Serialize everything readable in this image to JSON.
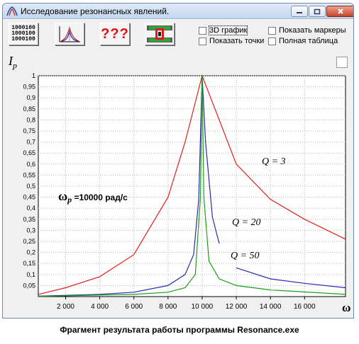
{
  "window": {
    "title": "Исследование резонансных явлений."
  },
  "toolbar": {
    "buttons": [
      {
        "name": "binary-data-icon",
        "lines": [
          "1000100",
          "1000100",
          "1000100"
        ]
      },
      {
        "name": "resonance-curves-icon"
      },
      {
        "name": "help-icon",
        "text": "???"
      },
      {
        "name": "circuit-icon"
      }
    ],
    "checkboxes": {
      "graph_3d": {
        "label": "3D график",
        "checked": false
      },
      "show_points": {
        "label": "Показать точки",
        "checked": false
      },
      "show_markers": {
        "label": "Показать маркеры",
        "checked": false
      },
      "full_table": {
        "label": "Полная таблица",
        "checked": false
      }
    }
  },
  "plot": {
    "y_symbol": "I",
    "y_symbol_sub": "p",
    "x_symbol": "ω",
    "resonance_label_symbol": "ω",
    "resonance_label_sub": "p",
    "resonance_label_rest": " =10000 рад/с",
    "q_labels": [
      {
        "text": "Q = 3"
      },
      {
        "text": "Q = 20"
      },
      {
        "text": "Q = 50"
      }
    ]
  },
  "chart_data": {
    "type": "line",
    "x_ticks": [
      "2 000",
      "4 000",
      "6 000",
      "8 000",
      "10 000",
      "12 000",
      "14 000",
      "16 000"
    ],
    "y_ticks": [
      "0,05",
      "0,1",
      "0,15",
      "0,2",
      "0,25",
      "0,3",
      "0,35",
      "0,4",
      "0,45",
      "0,5",
      "0,55",
      "0,6",
      "0,65",
      "0,7",
      "0,75",
      "0,8",
      "0,85",
      "0,9",
      "0,95",
      "1"
    ],
    "xlim": [
      400,
      18400
    ],
    "ylim": [
      0,
      1
    ],
    "grid": true,
    "series": [
      {
        "name": "Q = 3",
        "color": "#e02020",
        "segments": [
          [
            [
              400,
              0.01
            ],
            [
              2000,
              0.04
            ],
            [
              4000,
              0.09
            ],
            [
              6000,
              0.19
            ],
            [
              8000,
              0.45
            ],
            [
              9000,
              0.7
            ],
            [
              10000,
              1.0
            ],
            [
              11000,
              0.8
            ],
            [
              12000,
              0.6
            ],
            [
              14000,
              0.44
            ],
            [
              16000,
              0.35
            ],
            [
              18400,
              0.26
            ]
          ]
        ]
      },
      {
        "name": "Q = 20",
        "color": "#2a2ab0",
        "segments": [
          [
            [
              400,
              0.002
            ],
            [
              4000,
              0.01
            ],
            [
              6000,
              0.02
            ],
            [
              8000,
              0.05
            ],
            [
              9000,
              0.1
            ],
            [
              9500,
              0.19
            ],
            [
              9800,
              0.44
            ],
            [
              10000,
              1.0
            ],
            [
              10200,
              0.7
            ],
            [
              10600,
              0.36
            ],
            [
              11000,
              0.24
            ]
          ],
          [
            [
              12000,
              0.13
            ],
            [
              14000,
              0.08
            ],
            [
              16000,
              0.06
            ],
            [
              18400,
              0.04
            ]
          ]
        ]
      },
      {
        "name": "Q = 50",
        "color": "#1aa01a",
        "segments": [
          [
            [
              400,
              0.001
            ],
            [
              6000,
              0.01
            ],
            [
              8000,
              0.02
            ],
            [
              9000,
              0.04
            ],
            [
              9600,
              0.1
            ],
            [
              9900,
              0.45
            ],
            [
              10000,
              1.0
            ],
            [
              10100,
              0.45
            ],
            [
              10400,
              0.16
            ],
            [
              11000,
              0.08
            ],
            [
              12000,
              0.05
            ],
            [
              14000,
              0.03
            ],
            [
              18400,
              0.01
            ]
          ]
        ]
      }
    ]
  },
  "caption": "Фрагмент результата работы программы Resonance.exe"
}
